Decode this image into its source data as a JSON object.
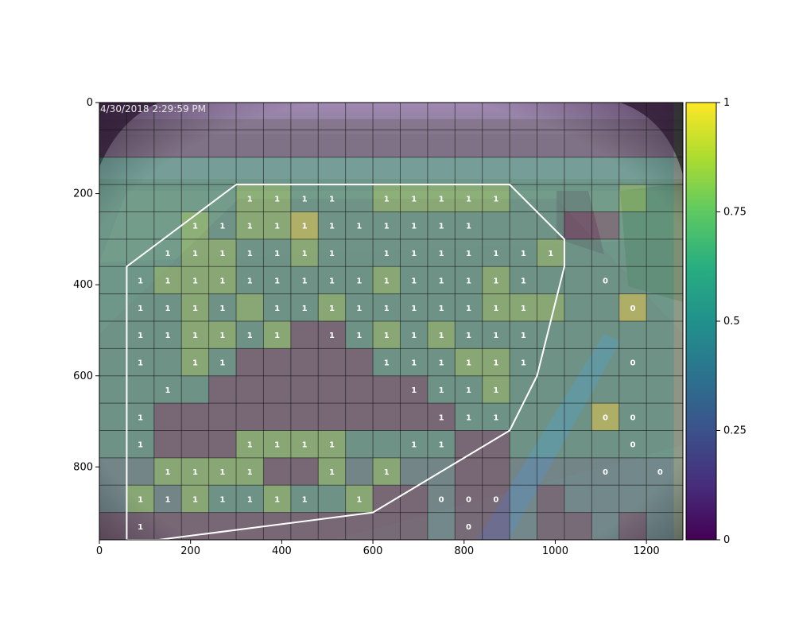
{
  "chart_data": {
    "type": "heatmap",
    "title": "",
    "xlabel": "",
    "ylabel": "",
    "photo_timestamp": "4/30/2018 2:29:59 PM",
    "xlim": [
      0,
      1280
    ],
    "ylim": [
      960,
      0
    ],
    "xticks": [
      0,
      200,
      400,
      600,
      800,
      1000,
      1200
    ],
    "yticks": [
      0,
      200,
      400,
      600,
      800
    ],
    "cell_width": 60,
    "cell_height": 60,
    "n_cols": 21,
    "n_rows": 16,
    "colorbar": {
      "range": [
        0,
        1
      ],
      "ticks": [
        0,
        0.25,
        0.5,
        0.75,
        1
      ],
      "tick_labels": [
        "0",
        "0.25",
        "0.5",
        "0.75",
        "1"
      ],
      "colormap": "viridis"
    },
    "overlay_alpha": 0.3,
    "cell_values": [
      [
        0,
        0,
        0,
        0,
        0,
        0,
        0,
        0,
        0,
        0,
        0,
        0,
        0,
        0,
        0,
        0,
        0,
        0,
        0,
        0,
        0
      ],
      [
        0,
        0,
        0,
        0,
        0,
        0,
        0,
        0,
        0,
        0,
        0,
        0,
        0,
        0,
        0,
        0,
        0,
        0,
        0,
        0,
        0
      ],
      [
        0.5,
        0.5,
        0.5,
        0.5,
        0.5,
        0.5,
        0.5,
        0.5,
        0.5,
        0.5,
        0.5,
        0.5,
        0.5,
        0.5,
        0.5,
        0.5,
        0.5,
        0.5,
        0.5,
        0.5,
        0.5
      ],
      [
        0.5,
        0.5,
        0.5,
        0.5,
        0.5,
        0.8,
        0.8,
        0.5,
        0.5,
        0.5,
        0.8,
        0.8,
        0.8,
        0.8,
        0.8,
        0.5,
        0.5,
        0.5,
        0.5,
        0.8,
        0.5
      ],
      [
        0.5,
        0.5,
        0.5,
        0.8,
        0.5,
        0.8,
        0.8,
        1,
        0.5,
        0.5,
        0.5,
        0.5,
        0.5,
        0.5,
        0.5,
        0.5,
        0.5,
        0,
        0,
        0.5,
        0.5
      ],
      [
        0.5,
        0.5,
        0.5,
        0.8,
        0.8,
        0.5,
        0.5,
        0.8,
        0.5,
        0.5,
        0.5,
        0.5,
        0.5,
        0.5,
        0.5,
        0.5,
        0.8,
        0.5,
        0.5,
        0.5,
        0.5
      ],
      [
        0.5,
        0.5,
        0.8,
        0.8,
        0.8,
        0.5,
        0.5,
        0.5,
        0.5,
        0.5,
        0.8,
        0.5,
        0.5,
        0.5,
        0.8,
        0.5,
        0.5,
        0.5,
        0.5,
        0.5,
        0.5
      ],
      [
        0.5,
        0.5,
        0.5,
        0.8,
        0.5,
        0.8,
        0.5,
        0.5,
        0.8,
        0.5,
        0.5,
        0.5,
        0.5,
        0.5,
        0.8,
        0.8,
        0.8,
        0.5,
        0.5,
        1,
        0.5
      ],
      [
        0.5,
        0.5,
        0.5,
        0.8,
        0.8,
        0.5,
        0.8,
        0,
        0,
        0.5,
        0.8,
        0.5,
        0.8,
        0.5,
        0.5,
        0.5,
        0.5,
        0.5,
        0.5,
        0.5,
        0.5
      ],
      [
        0.5,
        0.5,
        0.5,
        0.8,
        0.5,
        0,
        0,
        0,
        0,
        0,
        0.5,
        0.5,
        0.5,
        0.8,
        0.8,
        0.5,
        0.5,
        0.5,
        0.5,
        0.5,
        0.5
      ],
      [
        0.5,
        0.5,
        0.5,
        0.5,
        0,
        0,
        0,
        0,
        0,
        0,
        0,
        0,
        0.5,
        0.5,
        0.8,
        0.5,
        0.5,
        0.5,
        0.5,
        0.5,
        0.5
      ],
      [
        0.5,
        0.5,
        0,
        0,
        0,
        0,
        0,
        0,
        0,
        0,
        0,
        0,
        0,
        0.5,
        0.5,
        0.5,
        0.5,
        0.5,
        1,
        0.5,
        0.5
      ],
      [
        0.5,
        0.5,
        0,
        0,
        0,
        0.8,
        0.8,
        0.8,
        0.8,
        0.5,
        0.5,
        0.5,
        0.5,
        0,
        0,
        0.5,
        0.5,
        0.5,
        0.5,
        0.5,
        0.5
      ],
      [
        0.3,
        0.3,
        0.8,
        0.8,
        0.8,
        0.8,
        0,
        0,
        0.8,
        0.3,
        0.8,
        0.3,
        0.3,
        0,
        0,
        0.3,
        0.3,
        0.3,
        0.3,
        0.3,
        0.3
      ],
      [
        0.3,
        0.8,
        0.3,
        0.8,
        0.5,
        0.5,
        0.8,
        0.5,
        0.5,
        0.8,
        0,
        0,
        0.3,
        0,
        0,
        0.3,
        0,
        0.3,
        0.3,
        0.3,
        0.3
      ],
      [
        0,
        0,
        0,
        0,
        0,
        0,
        0,
        0,
        0,
        0,
        0,
        0,
        0.3,
        0,
        0,
        0.3,
        0,
        0,
        0.3,
        0,
        0.3
      ]
    ],
    "annotations": [
      {
        "col": 5,
        "row": 3,
        "text": "1"
      },
      {
        "col": 6,
        "row": 3,
        "text": "1"
      },
      {
        "col": 7,
        "row": 3,
        "text": "1"
      },
      {
        "col": 8,
        "row": 3,
        "text": "1"
      },
      {
        "col": 10,
        "row": 3,
        "text": "1"
      },
      {
        "col": 11,
        "row": 3,
        "text": "1"
      },
      {
        "col": 12,
        "row": 3,
        "text": "1"
      },
      {
        "col": 13,
        "row": 3,
        "text": "1"
      },
      {
        "col": 14,
        "row": 3,
        "text": "1"
      },
      {
        "col": 3,
        "row": 4,
        "text": "1"
      },
      {
        "col": 4,
        "row": 4,
        "text": "1"
      },
      {
        "col": 5,
        "row": 4,
        "text": "1"
      },
      {
        "col": 6,
        "row": 4,
        "text": "1"
      },
      {
        "col": 7,
        "row": 4,
        "text": "1"
      },
      {
        "col": 8,
        "row": 4,
        "text": "1"
      },
      {
        "col": 9,
        "row": 4,
        "text": "1"
      },
      {
        "col": 10,
        "row": 4,
        "text": "1"
      },
      {
        "col": 11,
        "row": 4,
        "text": "1"
      },
      {
        "col": 12,
        "row": 4,
        "text": "1"
      },
      {
        "col": 13,
        "row": 4,
        "text": "1"
      },
      {
        "col": 2,
        "row": 5,
        "text": "1"
      },
      {
        "col": 3,
        "row": 5,
        "text": "1"
      },
      {
        "col": 4,
        "row": 5,
        "text": "1"
      },
      {
        "col": 5,
        "row": 5,
        "text": "1"
      },
      {
        "col": 6,
        "row": 5,
        "text": "1"
      },
      {
        "col": 7,
        "row": 5,
        "text": "1"
      },
      {
        "col": 8,
        "row": 5,
        "text": "1"
      },
      {
        "col": 10,
        "row": 5,
        "text": "1"
      },
      {
        "col": 11,
        "row": 5,
        "text": "1"
      },
      {
        "col": 12,
        "row": 5,
        "text": "1"
      },
      {
        "col": 13,
        "row": 5,
        "text": "1"
      },
      {
        "col": 14,
        "row": 5,
        "text": "1"
      },
      {
        "col": 15,
        "row": 5,
        "text": "1"
      },
      {
        "col": 16,
        "row": 5,
        "text": "1"
      },
      {
        "col": 1,
        "row": 6,
        "text": "1"
      },
      {
        "col": 2,
        "row": 6,
        "text": "1"
      },
      {
        "col": 3,
        "row": 6,
        "text": "1"
      },
      {
        "col": 4,
        "row": 6,
        "text": "1"
      },
      {
        "col": 5,
        "row": 6,
        "text": "1"
      },
      {
        "col": 6,
        "row": 6,
        "text": "1"
      },
      {
        "col": 7,
        "row": 6,
        "text": "1"
      },
      {
        "col": 8,
        "row": 6,
        "text": "1"
      },
      {
        "col": 9,
        "row": 6,
        "text": "1"
      },
      {
        "col": 10,
        "row": 6,
        "text": "1"
      },
      {
        "col": 11,
        "row": 6,
        "text": "1"
      },
      {
        "col": 12,
        "row": 6,
        "text": "1"
      },
      {
        "col": 13,
        "row": 6,
        "text": "1"
      },
      {
        "col": 14,
        "row": 6,
        "text": "1"
      },
      {
        "col": 15,
        "row": 6,
        "text": "1"
      },
      {
        "col": 18,
        "row": 6,
        "text": "0"
      },
      {
        "col": 1,
        "row": 7,
        "text": "1"
      },
      {
        "col": 2,
        "row": 7,
        "text": "1"
      },
      {
        "col": 3,
        "row": 7,
        "text": "1"
      },
      {
        "col": 4,
        "row": 7,
        "text": "1"
      },
      {
        "col": 6,
        "row": 7,
        "text": "1"
      },
      {
        "col": 7,
        "row": 7,
        "text": "1"
      },
      {
        "col": 8,
        "row": 7,
        "text": "1"
      },
      {
        "col": 9,
        "row": 7,
        "text": "1"
      },
      {
        "col": 10,
        "row": 7,
        "text": "1"
      },
      {
        "col": 11,
        "row": 7,
        "text": "1"
      },
      {
        "col": 12,
        "row": 7,
        "text": "1"
      },
      {
        "col": 13,
        "row": 7,
        "text": "1"
      },
      {
        "col": 14,
        "row": 7,
        "text": "1"
      },
      {
        "col": 15,
        "row": 7,
        "text": "1"
      },
      {
        "col": 19,
        "row": 7,
        "text": "0"
      },
      {
        "col": 1,
        "row": 8,
        "text": "1"
      },
      {
        "col": 2,
        "row": 8,
        "text": "1"
      },
      {
        "col": 3,
        "row": 8,
        "text": "1"
      },
      {
        "col": 4,
        "row": 8,
        "text": "1"
      },
      {
        "col": 5,
        "row": 8,
        "text": "1"
      },
      {
        "col": 6,
        "row": 8,
        "text": "1"
      },
      {
        "col": 8,
        "row": 8,
        "text": "1"
      },
      {
        "col": 9,
        "row": 8,
        "text": "1"
      },
      {
        "col": 10,
        "row": 8,
        "text": "1"
      },
      {
        "col": 11,
        "row": 8,
        "text": "1"
      },
      {
        "col": 12,
        "row": 8,
        "text": "1"
      },
      {
        "col": 13,
        "row": 8,
        "text": "1"
      },
      {
        "col": 14,
        "row": 8,
        "text": "1"
      },
      {
        "col": 15,
        "row": 8,
        "text": "1"
      },
      {
        "col": 1,
        "row": 9,
        "text": "1"
      },
      {
        "col": 3,
        "row": 9,
        "text": "1"
      },
      {
        "col": 4,
        "row": 9,
        "text": "1"
      },
      {
        "col": 10,
        "row": 9,
        "text": "1"
      },
      {
        "col": 11,
        "row": 9,
        "text": "1"
      },
      {
        "col": 12,
        "row": 9,
        "text": "1"
      },
      {
        "col": 13,
        "row": 9,
        "text": "1"
      },
      {
        "col": 14,
        "row": 9,
        "text": "1"
      },
      {
        "col": 15,
        "row": 9,
        "text": "1"
      },
      {
        "col": 19,
        "row": 9,
        "text": "0"
      },
      {
        "col": 2,
        "row": 10,
        "text": "1"
      },
      {
        "col": 11,
        "row": 10,
        "text": "1"
      },
      {
        "col": 12,
        "row": 10,
        "text": "1"
      },
      {
        "col": 13,
        "row": 10,
        "text": "1"
      },
      {
        "col": 14,
        "row": 10,
        "text": "1"
      },
      {
        "col": 1,
        "row": 11,
        "text": "1"
      },
      {
        "col": 12,
        "row": 11,
        "text": "1"
      },
      {
        "col": 13,
        "row": 11,
        "text": "1"
      },
      {
        "col": 14,
        "row": 11,
        "text": "1"
      },
      {
        "col": 18,
        "row": 11,
        "text": "0"
      },
      {
        "col": 19,
        "row": 11,
        "text": "0"
      },
      {
        "col": 1,
        "row": 12,
        "text": "1"
      },
      {
        "col": 5,
        "row": 12,
        "text": "1"
      },
      {
        "col": 6,
        "row": 12,
        "text": "1"
      },
      {
        "col": 7,
        "row": 12,
        "text": "1"
      },
      {
        "col": 8,
        "row": 12,
        "text": "1"
      },
      {
        "col": 11,
        "row": 12,
        "text": "1"
      },
      {
        "col": 12,
        "row": 12,
        "text": "1"
      },
      {
        "col": 19,
        "row": 12,
        "text": "0"
      },
      {
        "col": 2,
        "row": 13,
        "text": "1"
      },
      {
        "col": 3,
        "row": 13,
        "text": "1"
      },
      {
        "col": 4,
        "row": 13,
        "text": "1"
      },
      {
        "col": 5,
        "row": 13,
        "text": "1"
      },
      {
        "col": 8,
        "row": 13,
        "text": "1"
      },
      {
        "col": 10,
        "row": 13,
        "text": "1"
      },
      {
        "col": 18,
        "row": 13,
        "text": "0"
      },
      {
        "col": 20,
        "row": 13,
        "text": "0"
      },
      {
        "col": 1,
        "row": 14,
        "text": "1"
      },
      {
        "col": 2,
        "row": 14,
        "text": "1"
      },
      {
        "col": 3,
        "row": 14,
        "text": "1"
      },
      {
        "col": 4,
        "row": 14,
        "text": "1"
      },
      {
        "col": 5,
        "row": 14,
        "text": "1"
      },
      {
        "col": 6,
        "row": 14,
        "text": "1"
      },
      {
        "col": 7,
        "row": 14,
        "text": "1"
      },
      {
        "col": 9,
        "row": 14,
        "text": "1"
      },
      {
        "col": 12,
        "row": 14,
        "text": "0"
      },
      {
        "col": 13,
        "row": 14,
        "text": "0"
      },
      {
        "col": 14,
        "row": 14,
        "text": "0"
      },
      {
        "col": 1,
        "row": 15,
        "text": "1"
      },
      {
        "col": 13,
        "row": 15,
        "text": "0"
      }
    ],
    "polygon": [
      [
        300,
        180
      ],
      [
        900,
        180
      ],
      [
        1020,
        300
      ],
      [
        1020,
        360
      ],
      [
        960,
        600
      ],
      [
        900,
        720
      ],
      [
        600,
        900
      ],
      [
        130,
        960
      ],
      [
        60,
        960
      ],
      [
        60,
        360
      ],
      [
        220,
        240
      ]
    ],
    "polygon_color": "#ffffff"
  }
}
